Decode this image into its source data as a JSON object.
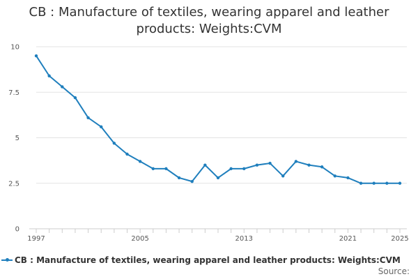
{
  "chart_data": {
    "type": "line",
    "title": "CB : Manufacture of textiles, wearing apparel and leather products: Weights:CVM",
    "title_lines": [
      "CB : Manufacture of textiles, wearing apparel and leather",
      "products: Weights:CVM"
    ],
    "xlabel": "",
    "ylabel": "",
    "x": [
      1997,
      1998,
      1999,
      2000,
      2001,
      2002,
      2003,
      2004,
      2005,
      2006,
      2007,
      2008,
      2009,
      2010,
      2011,
      2012,
      2013,
      2014,
      2015,
      2016,
      2017,
      2018,
      2019,
      2020,
      2021,
      2022,
      2023,
      2024,
      2025
    ],
    "series": [
      {
        "name": "CB : Manufacture of textiles, wearing apparel and leather products: Weights:CVM",
        "values": [
          9.5,
          8.4,
          7.8,
          7.2,
          6.1,
          5.6,
          4.7,
          4.1,
          3.7,
          3.3,
          3.3,
          2.8,
          2.6,
          3.5,
          2.8,
          3.3,
          3.3,
          3.5,
          3.6,
          2.9,
          3.7,
          3.5,
          3.4,
          2.9,
          2.8,
          2.5,
          2.5,
          2.5,
          2.5
        ],
        "color": "#1f7fbd"
      }
    ],
    "x_ticks": [
      "1997",
      "2005",
      "2013",
      "2021",
      "2025"
    ],
    "y_ticks": [
      "0",
      "2.5",
      "5",
      "7.5",
      "10"
    ],
    "xlim": [
      1997,
      2025
    ],
    "ylim": [
      0,
      10
    ],
    "grid": true,
    "legend_position": "bottom"
  },
  "source_label": "Source:"
}
